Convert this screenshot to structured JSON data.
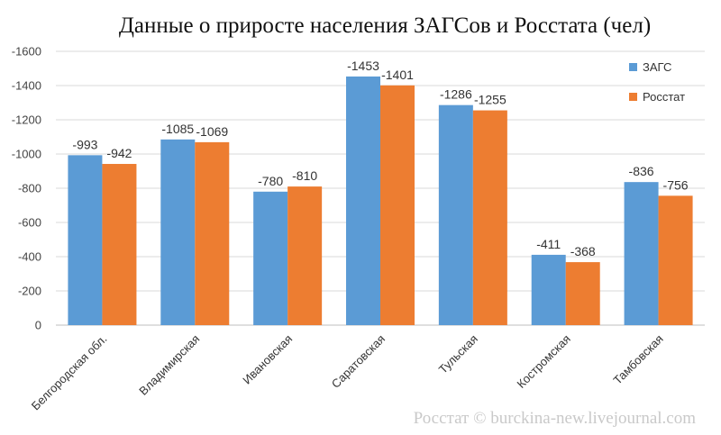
{
  "chart_data": {
    "type": "bar",
    "title": "Данные о приросте населения ЗАГСов и Росстата (чел)",
    "categories": [
      "Белгородская обл.",
      "Владимирская",
      "Ивановская",
      "Саратовская",
      "Тульская",
      "Костромская",
      "Тамбовская"
    ],
    "series": [
      {
        "name": "ЗАГС",
        "color": "#5B9BD5",
        "values": [
          -993,
          -1085,
          -780,
          -1453,
          -1286,
          -411,
          -836
        ]
      },
      {
        "name": "Росстат",
        "color": "#ED7D31",
        "values": [
          -942,
          -1069,
          -810,
          -1401,
          -1255,
          -368,
          -756
        ]
      }
    ],
    "ylim": [
      0,
      -1600
    ],
    "yticks": [
      0,
      -200,
      -400,
      -600,
      -800,
      -1000,
      -1200,
      -1400,
      -1600
    ],
    "y_inverted": true,
    "grid": true,
    "legend": "top-right",
    "data_labels": true,
    "xlabel": "",
    "ylabel": ""
  },
  "watermark": "Росстат © burckina-new.livejournal.com"
}
